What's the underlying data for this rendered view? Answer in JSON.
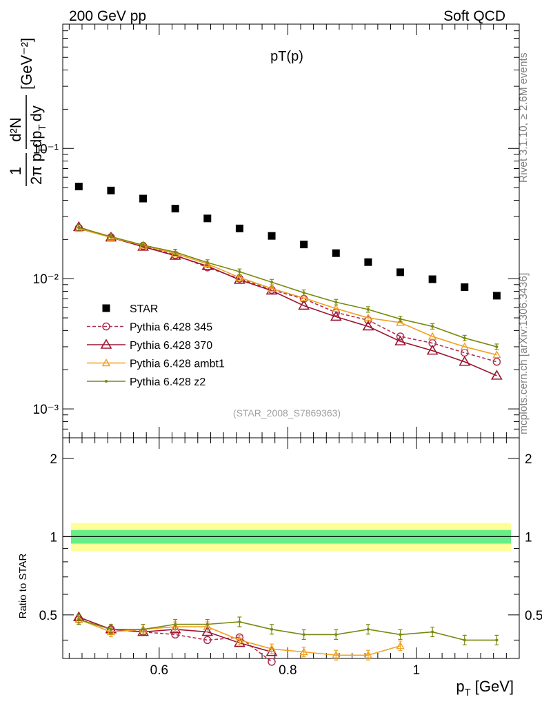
{
  "header": {
    "left": "200 GeV pp",
    "right": "Soft QCD"
  },
  "side_labels": {
    "rivet": "Rivet 3.1.10, ≥ 2.6M events",
    "mcplots": "mcplots.cern.ch [arXiv:1306.3436]"
  },
  "chart_data": [
    {
      "type": "scatter",
      "title": "pT(p)",
      "ylabel_parts": {
        "frac1_num": "1",
        "frac1_den": "2π p",
        "frac1_den_sub": "T",
        "frac2_num": "d²N",
        "frac2_den": "dp",
        "frac2_den_sub": "T",
        "frac2_den_tail": "dy",
        "unit": "[GeV⁻²]"
      },
      "yscale": "log",
      "xlim": [
        0.45,
        1.16
      ],
      "ylim": [
        0.0006,
        0.9
      ],
      "y_tick_labels": [
        "10⁻¹",
        "10⁻²",
        "10⁻³"
      ],
      "y_tick_values": [
        0.1,
        0.01,
        0.001
      ],
      "watermark": "(STAR_2008_S7869363)",
      "legend_position": "lower-left",
      "x": [
        0.475,
        0.525,
        0.575,
        0.625,
        0.675,
        0.725,
        0.775,
        0.825,
        0.875,
        0.925,
        0.975,
        1.025,
        1.075,
        1.125
      ],
      "series": [
        {
          "name": "STAR",
          "color": "#000000",
          "marker": "square",
          "values": [
            0.051,
            0.0475,
            0.0412,
            0.0345,
            0.029,
            0.0243,
            0.0213,
            0.0183,
            0.0157,
            0.0134,
            0.0112,
            0.0099,
            0.0086,
            0.0074
          ]
        },
        {
          "name": "Pythia 6.428 345",
          "color": "#b03050",
          "marker": "circle",
          "dash": "5,3",
          "values": [
            0.0245,
            0.0208,
            0.0178,
            0.0152,
            0.0122,
            0.01,
            0.0082,
            0.007,
            0.0055,
            0.0048,
            0.0036,
            0.0032,
            0.0027,
            0.0023
          ]
        },
        {
          "name": "Pythia 6.428 370",
          "color": "#9a1530",
          "marker": "triangle",
          "values": [
            0.0249,
            0.0207,
            0.0176,
            0.015,
            0.0125,
            0.0098,
            0.0081,
            0.0062,
            0.0051,
            0.0043,
            0.0033,
            0.0028,
            0.0023,
            0.0018
          ]
        },
        {
          "name": "Pythia 6.428 ambt1",
          "color": "#f0a020",
          "marker": "triangle-small",
          "values": [
            0.0242,
            0.0207,
            0.018,
            0.0156,
            0.013,
            0.0102,
            0.0084,
            0.0071,
            0.0059,
            0.005,
            0.0046,
            0.0036,
            0.003,
            0.0026
          ]
        },
        {
          "name": "Pythia 6.428 z2",
          "color": "#7a8810",
          "marker": "dot",
          "values": [
            0.0247,
            0.021,
            0.0181,
            0.016,
            0.0133,
            0.0113,
            0.0094,
            0.0078,
            0.0066,
            0.0058,
            0.0049,
            0.0043,
            0.0035,
            0.003
          ]
        }
      ]
    },
    {
      "type": "line",
      "ylabel": "Ratio to STAR",
      "xlabel": "p",
      "xlabel_sub": "T",
      "xlabel_unit": "[GeV]",
      "xlim": [
        0.45,
        1.16
      ],
      "ylim": [
        0.34,
        2.4
      ],
      "x_tick_labels": [
        "0.6",
        "0.8",
        "1"
      ],
      "x_tick_values": [
        0.6,
        0.8,
        1.0
      ],
      "y_tick_labels": [
        "2",
        "1",
        "0.5"
      ],
      "y_tick_values": [
        2,
        1,
        0.5
      ],
      "bands": {
        "inner": [
          0.94,
          1.06
        ],
        "outer": [
          0.88,
          1.13
        ]
      },
      "x": [
        0.475,
        0.525,
        0.575,
        0.625,
        0.675,
        0.725,
        0.775,
        0.825,
        0.875,
        0.925,
        0.975,
        1.025,
        1.075,
        1.125
      ],
      "series": [
        {
          "name": "Pythia 6.428 345",
          "values": [
            0.48,
            0.44,
            0.43,
            0.42,
            0.4,
            0.41,
            0.33,
            null,
            null,
            null,
            null,
            null,
            null,
            null
          ]
        },
        {
          "name": "Pythia 6.428 370",
          "values": [
            0.49,
            0.44,
            0.43,
            0.44,
            0.43,
            0.39,
            0.36,
            null,
            null,
            null,
            null,
            null,
            null,
            null
          ]
        },
        {
          "name": "Pythia 6.428 ambt1",
          "values": [
            0.48,
            0.43,
            0.44,
            0.45,
            0.45,
            0.4,
            0.37,
            0.36,
            0.35,
            0.35,
            0.38,
            null,
            null,
            null
          ]
        },
        {
          "name": "Pythia 6.428 z2",
          "values": [
            0.48,
            0.44,
            0.44,
            0.46,
            0.46,
            0.47,
            0.44,
            0.42,
            0.42,
            0.44,
            0.42,
            0.43,
            0.4,
            0.4
          ]
        }
      ]
    }
  ]
}
